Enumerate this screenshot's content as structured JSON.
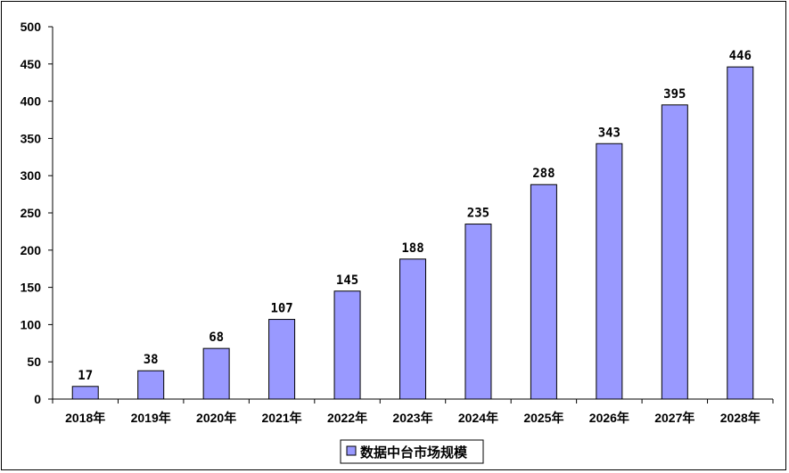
{
  "chart_data": {
    "type": "bar",
    "categories": [
      "2018年",
      "2019年",
      "2020年",
      "2021年",
      "2022年",
      "2023年",
      "2024年",
      "2025年",
      "2026年",
      "2027年",
      "2028年"
    ],
    "series": [
      {
        "name": "数据中台市场规模",
        "values": [
          17,
          38,
          68,
          107,
          145,
          188,
          235,
          288,
          343,
          395,
          446
        ]
      }
    ],
    "ylim": [
      0,
      500
    ],
    "yticks": [
      0,
      50,
      100,
      150,
      200,
      250,
      300,
      350,
      400,
      450,
      500
    ],
    "bar_color": "#9999ff",
    "data_labels": true,
    "grid": false,
    "legend_position": "bottom-center"
  }
}
